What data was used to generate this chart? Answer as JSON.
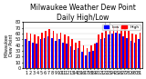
{
  "title": "Milwaukee Weather Dew Point",
  "subtitle": "Daily High/Low",
  "ylabel_left": "Milwaukee\nDew Point",
  "bar_data": {
    "highs": [
      62,
      60,
      58,
      55,
      62,
      65,
      68,
      65,
      60,
      62,
      58,
      55,
      50,
      45,
      48,
      40,
      35,
      40,
      42,
      58,
      62,
      65,
      70,
      72,
      75,
      72,
      68,
      65,
      60,
      58,
      62
    ],
    "lows": [
      50,
      48,
      45,
      42,
      50,
      52,
      55,
      52,
      48,
      50,
      45,
      42,
      38,
      32,
      35,
      28,
      22,
      28,
      30,
      45,
      50,
      52,
      58,
      60,
      62,
      60,
      55,
      52,
      48,
      45,
      50
    ]
  },
  "high_color": "#ff0000",
  "low_color": "#0000ff",
  "ylim": [
    0,
    80
  ],
  "yticks": [
    0,
    10,
    20,
    30,
    40,
    50,
    60,
    70,
    80
  ],
  "background_color": "#ffffff",
  "plot_bg_color": "#ffffff",
  "dashed_bar_indices": [
    21,
    22
  ],
  "legend_high": "High",
  "legend_low": "Low",
  "title_fontsize": 5.5,
  "tick_fontsize": 3.5
}
